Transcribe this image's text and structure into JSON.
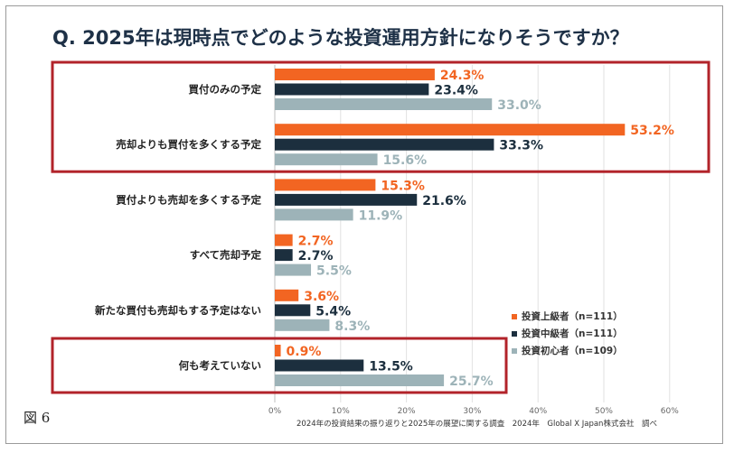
{
  "figure_label": "図 6",
  "chart_data": {
    "type": "bar",
    "orientation": "horizontal",
    "title": "Q. 2025年は現時点でどのような投資運用方針になりそうですか？",
    "categories": [
      "買付のみの予定",
      "売却よりも買付を多くする予定",
      "買付よりも売却を多くする予定",
      "すべて売却予定",
      "新たな買付も売却もする予定はない",
      "何も考えていない"
    ],
    "series": [
      {
        "name": "投資上級者（n=111）",
        "color": "#f26522",
        "values": [
          24.3,
          53.2,
          15.3,
          2.7,
          3.6,
          0.9
        ]
      },
      {
        "name": "投資中級者（n=111）",
        "color": "#1c2f3e",
        "values": [
          23.4,
          33.3,
          21.6,
          2.7,
          5.4,
          13.5
        ]
      },
      {
        "name": "投資初心者（n=109）",
        "color": "#9db3b8",
        "values": [
          33.0,
          15.6,
          11.9,
          5.5,
          8.3,
          25.7
        ]
      }
    ],
    "xlim": [
      0,
      60
    ],
    "ticks": [
      "0%",
      "10%",
      "20%",
      "30%",
      "40%",
      "50%",
      "60%"
    ],
    "value_suffix": "%",
    "legend": "right",
    "highlight_color": "#b2232a",
    "source": "2024年の投資結果の振り返りと2025年の展望に関する調査　2024年　Global X Japan株式会社　調べ"
  }
}
